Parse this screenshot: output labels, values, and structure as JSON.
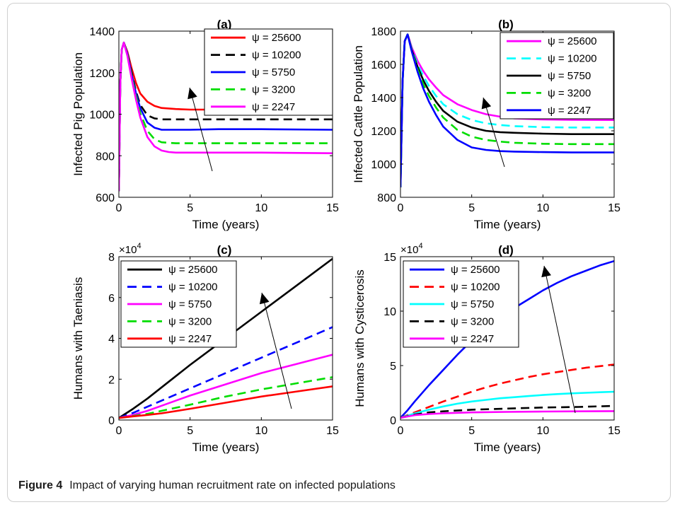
{
  "figure": {
    "caption_label": "Figure 4",
    "caption_text": "Impact of varying human recruitment rate on infected populations"
  },
  "chart_data": [
    {
      "type": "line",
      "panel_label": "(a)",
      "xlabel": "Time (years)",
      "ylabel": "Infected Pig Population",
      "xlim": [
        0,
        15
      ],
      "ylim": [
        600,
        1400
      ],
      "xticks": [
        0,
        5,
        10,
        15
      ],
      "yticks": [
        600,
        800,
        1000,
        1200,
        1400
      ],
      "legend_position": "top-right",
      "series": [
        {
          "name": "ψ = 25600",
          "color": "#ff0000",
          "dash": "solid",
          "x": [
            0,
            0.1,
            0.2,
            0.35,
            0.6,
            0.9,
            1.2,
            1.5,
            2,
            2.5,
            3,
            4,
            5,
            7,
            10,
            15
          ],
          "y": [
            630,
            1150,
            1310,
            1345,
            1300,
            1220,
            1150,
            1100,
            1060,
            1040,
            1030,
            1025,
            1022,
            1022,
            1022,
            1022
          ]
        },
        {
          "name": "ψ = 10200",
          "color": "#000000",
          "dash": "dashed",
          "x": [
            0,
            0.1,
            0.2,
            0.35,
            0.6,
            0.9,
            1.2,
            1.5,
            2,
            2.5,
            3,
            4,
            5,
            7,
            10,
            15
          ],
          "y": [
            630,
            1150,
            1310,
            1345,
            1295,
            1200,
            1110,
            1045,
            995,
            980,
            975,
            975,
            975,
            975,
            975,
            975
          ]
        },
        {
          "name": "ψ = 5750",
          "color": "#0000ff",
          "dash": "solid",
          "x": [
            0,
            0.1,
            0.2,
            0.35,
            0.6,
            0.9,
            1.2,
            1.5,
            2,
            2.5,
            3,
            4,
            5,
            7,
            10,
            15
          ],
          "y": [
            630,
            1150,
            1310,
            1345,
            1290,
            1190,
            1100,
            1030,
            960,
            935,
            925,
            925,
            925,
            928,
            928,
            925
          ]
        },
        {
          "name": "ψ = 3200",
          "color": "#00dd00",
          "dash": "dashed",
          "x": [
            0,
            0.1,
            0.2,
            0.35,
            0.6,
            0.9,
            1.2,
            1.5,
            2,
            2.5,
            3,
            4,
            5,
            7,
            10,
            15
          ],
          "y": [
            630,
            1150,
            1310,
            1345,
            1285,
            1180,
            1085,
            1005,
            920,
            880,
            865,
            860,
            860,
            860,
            860,
            860
          ]
        },
        {
          "name": "ψ = 2247",
          "color": "#ff00ff",
          "dash": "solid",
          "x": [
            0,
            0.1,
            0.2,
            0.35,
            0.6,
            0.9,
            1.2,
            1.5,
            2,
            2.5,
            3,
            3.5,
            4,
            5,
            7,
            10,
            15
          ],
          "y": [
            630,
            1150,
            1310,
            1345,
            1280,
            1170,
            1070,
            985,
            890,
            845,
            825,
            818,
            815,
            815,
            815,
            815,
            812
          ]
        }
      ]
    },
    {
      "type": "line",
      "panel_label": "(b)",
      "xlabel": "Time (years)",
      "ylabel": "Infected Cattle Population",
      "xlim": [
        0,
        15
      ],
      "ylim": [
        800,
        1800
      ],
      "xticks": [
        0,
        5,
        10,
        15
      ],
      "yticks": [
        800,
        1000,
        1200,
        1400,
        1600,
        1800
      ],
      "legend_position": "top-right",
      "series": [
        {
          "name": "ψ = 25600",
          "color": "#ff00ff",
          "dash": "solid",
          "x": [
            0,
            0.15,
            0.3,
            0.5,
            0.8,
            1.2,
            1.6,
            2,
            2.5,
            3,
            4,
            5,
            6,
            7,
            8,
            10,
            12,
            15
          ],
          "y": [
            860,
            1500,
            1740,
            1780,
            1700,
            1620,
            1560,
            1510,
            1460,
            1415,
            1360,
            1325,
            1300,
            1285,
            1275,
            1268,
            1266,
            1265
          ]
        },
        {
          "name": "ψ = 10200",
          "color": "#00ffff",
          "dash": "dashed",
          "x": [
            0,
            0.15,
            0.3,
            0.5,
            0.8,
            1.2,
            1.6,
            2,
            2.5,
            3,
            4,
            5,
            6,
            7,
            8,
            10,
            12,
            15
          ],
          "y": [
            860,
            1500,
            1740,
            1780,
            1690,
            1600,
            1530,
            1470,
            1410,
            1360,
            1300,
            1265,
            1245,
            1235,
            1228,
            1222,
            1220,
            1220
          ]
        },
        {
          "name": "ψ = 5750",
          "color": "#000000",
          "dash": "solid",
          "x": [
            0,
            0.15,
            0.3,
            0.5,
            0.8,
            1.2,
            1.6,
            2,
            2.5,
            3,
            4,
            5,
            6,
            7,
            8,
            10,
            12,
            15
          ],
          "y": [
            860,
            1500,
            1740,
            1780,
            1685,
            1585,
            1505,
            1440,
            1375,
            1320,
            1255,
            1220,
            1200,
            1192,
            1188,
            1183,
            1180,
            1180
          ]
        },
        {
          "name": "ψ = 3200",
          "color": "#00dd00",
          "dash": "dashed",
          "x": [
            0,
            0.15,
            0.3,
            0.5,
            0.8,
            1.2,
            1.6,
            2,
            2.5,
            3,
            4,
            5,
            6,
            7,
            8,
            10,
            12,
            15
          ],
          "y": [
            860,
            1500,
            1740,
            1780,
            1680,
            1570,
            1480,
            1410,
            1340,
            1280,
            1205,
            1165,
            1145,
            1135,
            1128,
            1122,
            1120,
            1120
          ]
        },
        {
          "name": "ψ = 2247",
          "color": "#0000ff",
          "dash": "solid",
          "x": [
            0,
            0.15,
            0.3,
            0.5,
            0.8,
            1.2,
            1.6,
            2,
            2.5,
            3,
            4,
            5,
            6,
            7,
            8,
            10,
            12,
            15
          ],
          "y": [
            860,
            1500,
            1740,
            1780,
            1675,
            1555,
            1455,
            1375,
            1295,
            1225,
            1145,
            1100,
            1085,
            1078,
            1075,
            1072,
            1070,
            1070
          ]
        }
      ]
    },
    {
      "type": "line",
      "panel_label": "(c)",
      "xlabel": "Time (years)",
      "ylabel": "Humans with Taeniasis",
      "multiplier": "×10^4",
      "xlim": [
        0,
        15
      ],
      "ylim": [
        0,
        8
      ],
      "xticks": [
        0,
        5,
        10,
        15
      ],
      "yticks": [
        0,
        2,
        4,
        6,
        8
      ],
      "legend_position": "top-left",
      "series": [
        {
          "name": "ψ = 25600",
          "color": "#000000",
          "dash": "solid",
          "x": [
            0,
            1,
            2,
            3,
            5,
            7.5,
            10,
            12.5,
            15
          ],
          "y": [
            0.1,
            0.55,
            1.05,
            1.6,
            2.7,
            4.0,
            5.3,
            6.6,
            7.9
          ]
        },
        {
          "name": "ψ = 10200",
          "color": "#0000ff",
          "dash": "dashed",
          "x": [
            0,
            1,
            2,
            3,
            5,
            7.5,
            10,
            12.5,
            15
          ],
          "y": [
            0.1,
            0.35,
            0.65,
            0.95,
            1.55,
            2.3,
            3.05,
            3.8,
            4.55
          ]
        },
        {
          "name": "ψ = 5750",
          "color": "#ff00ff",
          "dash": "solid",
          "x": [
            0,
            1,
            2,
            3,
            5,
            7.5,
            10,
            12.5,
            15
          ],
          "y": [
            0.1,
            0.25,
            0.45,
            0.7,
            1.2,
            1.75,
            2.3,
            2.75,
            3.2
          ]
        },
        {
          "name": "ψ = 3200",
          "color": "#00dd00",
          "dash": "dashed",
          "x": [
            0,
            1,
            2,
            3,
            5,
            7.5,
            10,
            12.5,
            15
          ],
          "y": [
            0.1,
            0.2,
            0.3,
            0.45,
            0.75,
            1.15,
            1.5,
            1.8,
            2.1
          ]
        },
        {
          "name": "ψ = 2247",
          "color": "#ff0000",
          "dash": "solid",
          "x": [
            0,
            1,
            2,
            3,
            5,
            7.5,
            10,
            12.5,
            15
          ],
          "y": [
            0.1,
            0.18,
            0.25,
            0.33,
            0.55,
            0.85,
            1.15,
            1.4,
            1.65
          ]
        }
      ]
    },
    {
      "type": "line",
      "panel_label": "(d)",
      "xlabel": "Time (years)",
      "ylabel": "Humans with Cysticerosis",
      "multiplier": "×10^4",
      "xlim": [
        0,
        15
      ],
      "ylim": [
        0,
        15
      ],
      "xticks": [
        0,
        5,
        10,
        15
      ],
      "yticks": [
        0,
        5,
        10,
        15
      ],
      "legend_position": "top-left",
      "series": [
        {
          "name": "ψ = 25600",
          "color": "#0000ff",
          "dash": "solid",
          "x": [
            0,
            0.5,
            1,
            2,
            3,
            4,
            5,
            6,
            7,
            8,
            9,
            10,
            11,
            12,
            13,
            14,
            15
          ],
          "y": [
            0.2,
            0.9,
            1.7,
            3.2,
            4.6,
            6.0,
            7.3,
            8.4,
            9.4,
            10.3,
            11.1,
            11.9,
            12.6,
            13.2,
            13.7,
            14.2,
            14.6
          ]
        },
        {
          "name": "ψ = 10200",
          "color": "#ff0000",
          "dash": "dashed",
          "x": [
            0,
            1,
            2,
            3,
            4,
            5,
            6,
            7,
            8,
            9,
            10,
            11,
            12,
            13,
            14,
            15
          ],
          "y": [
            0.2,
            0.7,
            1.2,
            1.7,
            2.15,
            2.6,
            3.0,
            3.35,
            3.65,
            3.95,
            4.2,
            4.4,
            4.6,
            4.8,
            4.95,
            5.1
          ]
        },
        {
          "name": "ψ = 5750",
          "color": "#00ffff",
          "dash": "solid",
          "x": [
            0,
            1,
            2,
            3,
            4,
            5,
            6,
            7,
            8,
            9,
            10,
            11,
            12,
            13,
            14,
            15
          ],
          "y": [
            0.2,
            0.6,
            0.95,
            1.25,
            1.5,
            1.7,
            1.85,
            2.0,
            2.1,
            2.2,
            2.3,
            2.38,
            2.45,
            2.5,
            2.55,
            2.6
          ]
        },
        {
          "name": "ψ = 3200",
          "color": "#000000",
          "dash": "dashed",
          "x": [
            0,
            1,
            2,
            3,
            5,
            7.5,
            10,
            12.5,
            15
          ],
          "y": [
            0.2,
            0.5,
            0.7,
            0.8,
            0.95,
            1.05,
            1.15,
            1.2,
            1.3
          ]
        },
        {
          "name": "ψ = 2247",
          "color": "#ff00ff",
          "dash": "solid",
          "x": [
            0,
            1,
            2,
            3,
            5,
            7.5,
            10,
            12.5,
            15
          ],
          "y": [
            0.2,
            0.45,
            0.55,
            0.62,
            0.7,
            0.75,
            0.78,
            0.8,
            0.82
          ]
        }
      ]
    }
  ]
}
